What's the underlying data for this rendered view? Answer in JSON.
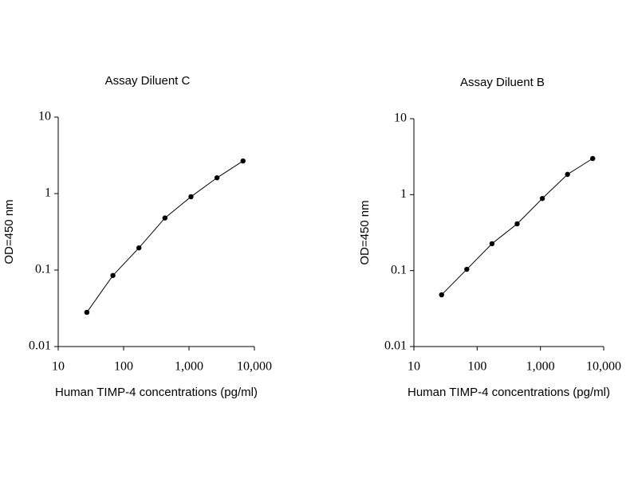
{
  "chart_data": [
    {
      "type": "line",
      "title": "Assay Diluent C",
      "x_label": "Human TIMP-4 concentrations (pg/ml)",
      "y_label": "OD=450 nm",
      "x_scale": "log",
      "y_scale": "log",
      "color": "#000000",
      "x": [
        27.4,
        68.6,
        171.5,
        428.7,
        1071.8,
        2679.7,
        6699
      ],
      "values": [
        0.028,
        0.085,
        0.195,
        0.48,
        0.91,
        1.61,
        2.67
      ],
      "xlim": [
        10,
        10000
      ],
      "xticks": [
        10,
        100,
        {
          "value": 1000,
          "label": "1,000"
        },
        {
          "value": 10000,
          "label": "10,000"
        }
      ],
      "ylim": [
        0.01,
        10
      ],
      "yticks": [
        0.01,
        0.1,
        1,
        10
      ]
    },
    {
      "type": "line",
      "title": "Assay Diluent B",
      "x_label": "Human TIMP-4 concentrations (pg/ml)",
      "y_label": "OD=450 nm",
      "x_scale": "log",
      "y_scale": "log",
      "color": "#000000",
      "x": [
        27.4,
        68.6,
        171.5,
        428.7,
        1071.8,
        2679.7,
        6699
      ],
      "values": [
        0.048,
        0.104,
        0.226,
        0.413,
        0.89,
        1.85,
        2.99
      ],
      "xlim": [
        10,
        10000
      ],
      "xticks": [
        10,
        100,
        {
          "value": 1000,
          "label": "1,000"
        },
        {
          "value": 10000,
          "label": "10,000"
        }
      ],
      "ylim": [
        0.01,
        10
      ],
      "yticks": [
        0.01,
        0.1,
        1,
        10
      ]
    }
  ]
}
